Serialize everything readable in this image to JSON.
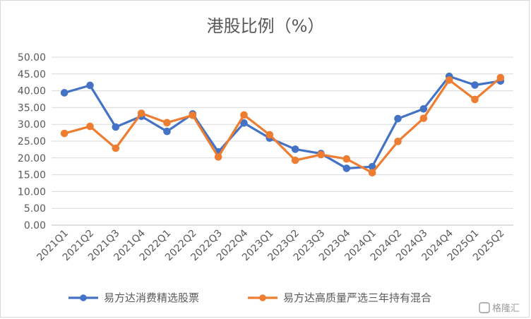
{
  "chart_data": {
    "type": "line",
    "title": "港股比例（%）",
    "xlabel": "",
    "ylabel": "",
    "ylim": [
      0,
      50
    ],
    "ytick_step": 5,
    "grid": true,
    "legend_position": "bottom",
    "categories": [
      "2021Q1",
      "2021Q2",
      "2021Q3",
      "2021Q4",
      "2022Q1",
      "2022Q2",
      "2022Q3",
      "2022Q4",
      "2023Q1",
      "2023Q2",
      "2023Q3",
      "2023Q4",
      "2024Q1",
      "2024Q2",
      "2024Q3",
      "2024Q4",
      "2025Q1",
      "2025Q2"
    ],
    "series": [
      {
        "name": "易方达消费精选股票",
        "color": "#4472C4",
        "values": [
          39.4,
          41.6,
          29.2,
          32.4,
          27.9,
          33.1,
          21.8,
          30.4,
          25.9,
          22.6,
          21.3,
          16.9,
          17.4,
          31.7,
          34.6,
          44.3,
          41.7,
          42.9
        ]
      },
      {
        "name": "易方达高质量严选三年持有混合",
        "color": "#ED7D31",
        "values": [
          27.3,
          29.4,
          22.9,
          33.3,
          30.5,
          32.7,
          20.3,
          32.8,
          26.9,
          19.3,
          21.0,
          19.7,
          15.6,
          24.9,
          31.8,
          43.2,
          37.4,
          43.9
        ]
      }
    ]
  },
  "watermark": "格隆汇"
}
